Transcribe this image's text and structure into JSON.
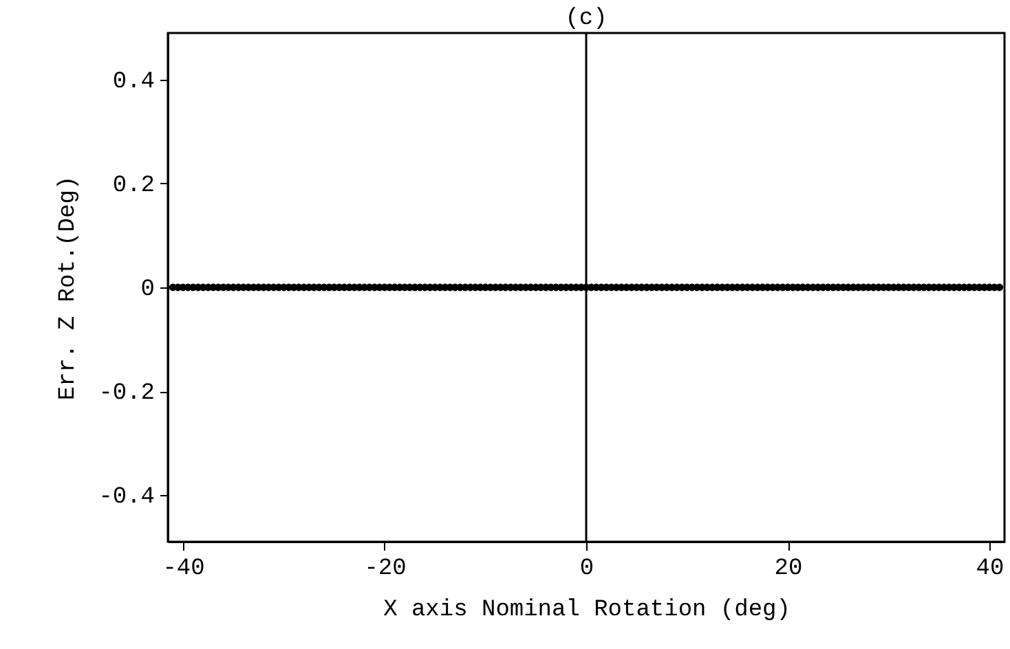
{
  "chart_data": {
    "type": "scatter",
    "title": "(c)",
    "xlabel": "X axis Nominal Rotation (deg)",
    "ylabel": "Err. Z Rot.(Deg)",
    "x": [
      -41,
      -40.5,
      -40,
      -39.5,
      -39,
      -38.5,
      -38,
      -37.5,
      -37,
      -36.5,
      -36,
      -35.5,
      -35,
      -34.5,
      -34,
      -33.5,
      -33,
      -32.5,
      -32,
      -31.5,
      -31,
      -30.5,
      -30,
      -29.5,
      -29,
      -28.5,
      -28,
      -27.5,
      -27,
      -26.5,
      -26,
      -25.5,
      -25,
      -24.5,
      -24,
      -23.5,
      -23,
      -22.5,
      -22,
      -21.5,
      -21,
      -20.5,
      -20,
      -19.5,
      -19,
      -18.5,
      -18,
      -17.5,
      -17,
      -16.5,
      -16,
      -15.5,
      -15,
      -14.5,
      -14,
      -13.5,
      -13,
      -12.5,
      -12,
      -11.5,
      -11,
      -10.5,
      -10,
      -9.5,
      -9,
      -8.5,
      -8,
      -7.5,
      -7,
      -6.5,
      -6,
      -5.5,
      -5,
      -4.5,
      -4,
      -3.5,
      -3,
      -2.5,
      -2,
      -1.5,
      -1,
      -0.5,
      0,
      0.5,
      1,
      1.5,
      2,
      2.5,
      3,
      3.5,
      4,
      4.5,
      5,
      5.5,
      6,
      6.5,
      7,
      7.5,
      8,
      8.5,
      9,
      9.5,
      10,
      10.5,
      11,
      11.5,
      12,
      12.5,
      13,
      13.5,
      14,
      14.5,
      15,
      15.5,
      16,
      16.5,
      17,
      17.5,
      18,
      18.5,
      19,
      19.5,
      20,
      20.5,
      21,
      21.5,
      22,
      22.5,
      23,
      23.5,
      24,
      24.5,
      25,
      25.5,
      26,
      26.5,
      27,
      27.5,
      28,
      28.5,
      29,
      29.5,
      30,
      30.5,
      31,
      31.5,
      32,
      32.5,
      33,
      33.5,
      34,
      34.5,
      35,
      35.5,
      36,
      36.5,
      37,
      37.5,
      38,
      38.5,
      39,
      39.5,
      40,
      40.5,
      41
    ],
    "series": [
      {
        "color": "#000000",
        "values": [
          0,
          0,
          0,
          0,
          0,
          0,
          0,
          0,
          0,
          0,
          0,
          0,
          0,
          0,
          0,
          0,
          0,
          0,
          0,
          0,
          0,
          0,
          0,
          0,
          0,
          0,
          0,
          0,
          0,
          0,
          0,
          0,
          0,
          0,
          0,
          0,
          0,
          0,
          0,
          0,
          0,
          0,
          0,
          0,
          0,
          0,
          0,
          0,
          0,
          0,
          0,
          0,
          0,
          0,
          0,
          0,
          0,
          0,
          0,
          0,
          0,
          0,
          0,
          0,
          0,
          0,
          0,
          0,
          0,
          0,
          0,
          0,
          0,
          0,
          0,
          0,
          0,
          0,
          0,
          0,
          0,
          0,
          0,
          0,
          0,
          0,
          0,
          0,
          0,
          0,
          0,
          0,
          0,
          0,
          0,
          0,
          0,
          0,
          0,
          0,
          0,
          0,
          0,
          0,
          0,
          0,
          0,
          0,
          0,
          0,
          0,
          0,
          0,
          0,
          0,
          0,
          0,
          0,
          0,
          0,
          0,
          0,
          0,
          0,
          0,
          0,
          0,
          0,
          0,
          0,
          0,
          0,
          0,
          0,
          0,
          0,
          0,
          0,
          0,
          0,
          0,
          0,
          0,
          0,
          0,
          0,
          0,
          0,
          0,
          0,
          0,
          0,
          0,
          0,
          0,
          0,
          0,
          0,
          0,
          0,
          0,
          0,
          0,
          0,
          0
        ]
      }
    ],
    "marker": "circle",
    "xlim": [
      -41.5,
      41.5
    ],
    "xticks": [
      -40,
      -20,
      0,
      20,
      40
    ],
    "ylim": [
      -0.49,
      0.49
    ],
    "yticks": [
      -0.4,
      -0.2,
      0,
      0.2,
      0.4
    ],
    "ref_lines": [
      {
        "axis": "x",
        "value": 0,
        "color": "#000000"
      }
    ],
    "grid": false
  }
}
